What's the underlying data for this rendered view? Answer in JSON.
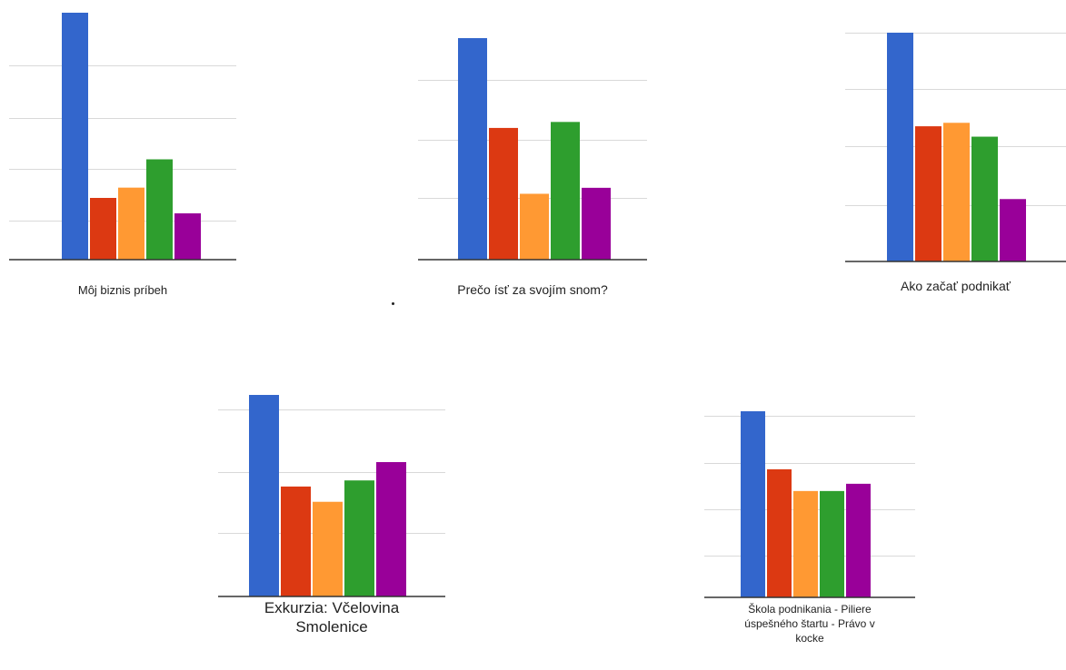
{
  "colors": [
    "#3366cc",
    "#dc3912",
    "#ff9933",
    "#2e9e2e",
    "#990099"
  ],
  "chart_data": [
    {
      "type": "bar",
      "title": "Môj biznis príbeh",
      "categories": [
        "",
        "",
        "",
        "",
        ""
      ],
      "values": [
        4.8,
        1.2,
        1.4,
        1.95,
        0.9
      ],
      "ylim": [
        0,
        4.8
      ],
      "grid": true
    },
    {
      "type": "bar",
      "title": "Prečo ísť za svojím snom?",
      "categories": [
        "",
        "",
        "",
        "",
        ""
      ],
      "values": [
        3.7,
        2.2,
        1.1,
        2.3,
        1.2
      ],
      "ylim": [
        0,
        3.7
      ],
      "grid": true
    },
    {
      "type": "bar",
      "title": "Ako začať podnikať",
      "categories": [
        "",
        "",
        "",
        "",
        ""
      ],
      "values": [
        3.3,
        1.95,
        2.0,
        1.8,
        0.9
      ],
      "ylim": [
        0,
        3.3
      ],
      "grid": true
    },
    {
      "type": "bar",
      "title": "Exkurzia: Včelovina Smolenice",
      "categories": [
        "",
        "",
        "",
        "",
        ""
      ],
      "values": [
        3.3,
        1.8,
        1.55,
        1.9,
        2.2
      ],
      "ylim": [
        0,
        3.3
      ],
      "grid": true
    },
    {
      "type": "bar",
      "title": "Škola podnikania - Piliere úspešného štartu - Právo v kocke",
      "categories": [
        "",
        "",
        "",
        "",
        ""
      ],
      "values": [
        3.85,
        2.65,
        2.2,
        2.2,
        2.35
      ],
      "ylim": [
        0,
        3.85
      ],
      "grid": true
    }
  ]
}
